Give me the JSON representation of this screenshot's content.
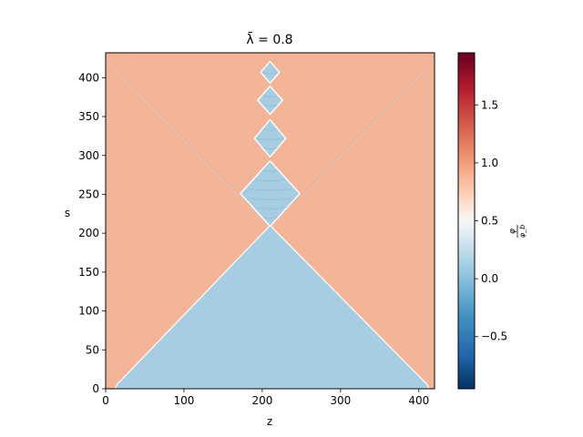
{
  "chart_data": {
    "type": "heatmap",
    "title": "λ̄ = 0.8",
    "xlabel": "z",
    "ylabel": "s",
    "xlim": [
      0,
      420
    ],
    "ylim": [
      0,
      432
    ],
    "xticks": [
      0,
      100,
      200,
      300,
      400
    ],
    "yticks": [
      0,
      50,
      100,
      150,
      200,
      250,
      300,
      350,
      400
    ],
    "colorbar": {
      "label_num": "φ",
      "label_den": "φ_b",
      "range": [
        -0.95,
        1.95
      ],
      "ticks": [
        -0.5,
        0.0,
        0.5,
        1.0,
        1.5
      ],
      "tick_labels": [
        "−0.5",
        "0.0",
        "0.5",
        "1.0",
        "1.5"
      ],
      "colormap": "RdBu_r"
    },
    "field": {
      "background_value": 1.0,
      "interior_value": 0.0,
      "cone": {
        "apex": [
          210,
          210
        ],
        "base_left": [
          15,
          0
        ],
        "base_right": [
          410,
          0
        ]
      },
      "bubbles": [
        {
          "center": [
            210,
            251
          ],
          "half_width": 38,
          "half_height": 42
        },
        {
          "center": [
            210,
            322
          ],
          "half_width": 20,
          "half_height": 24
        },
        {
          "center": [
            210,
            371
          ],
          "half_width": 16,
          "half_height": 18
        },
        {
          "center": [
            210,
            407
          ],
          "half_width": 12,
          "half_height": 14
        }
      ]
    },
    "colors": {
      "background": "#f4b497",
      "interior": "#a7cde3",
      "ripple_dark": "#e2a086",
      "ripple_light": "#d8e6f0"
    }
  }
}
